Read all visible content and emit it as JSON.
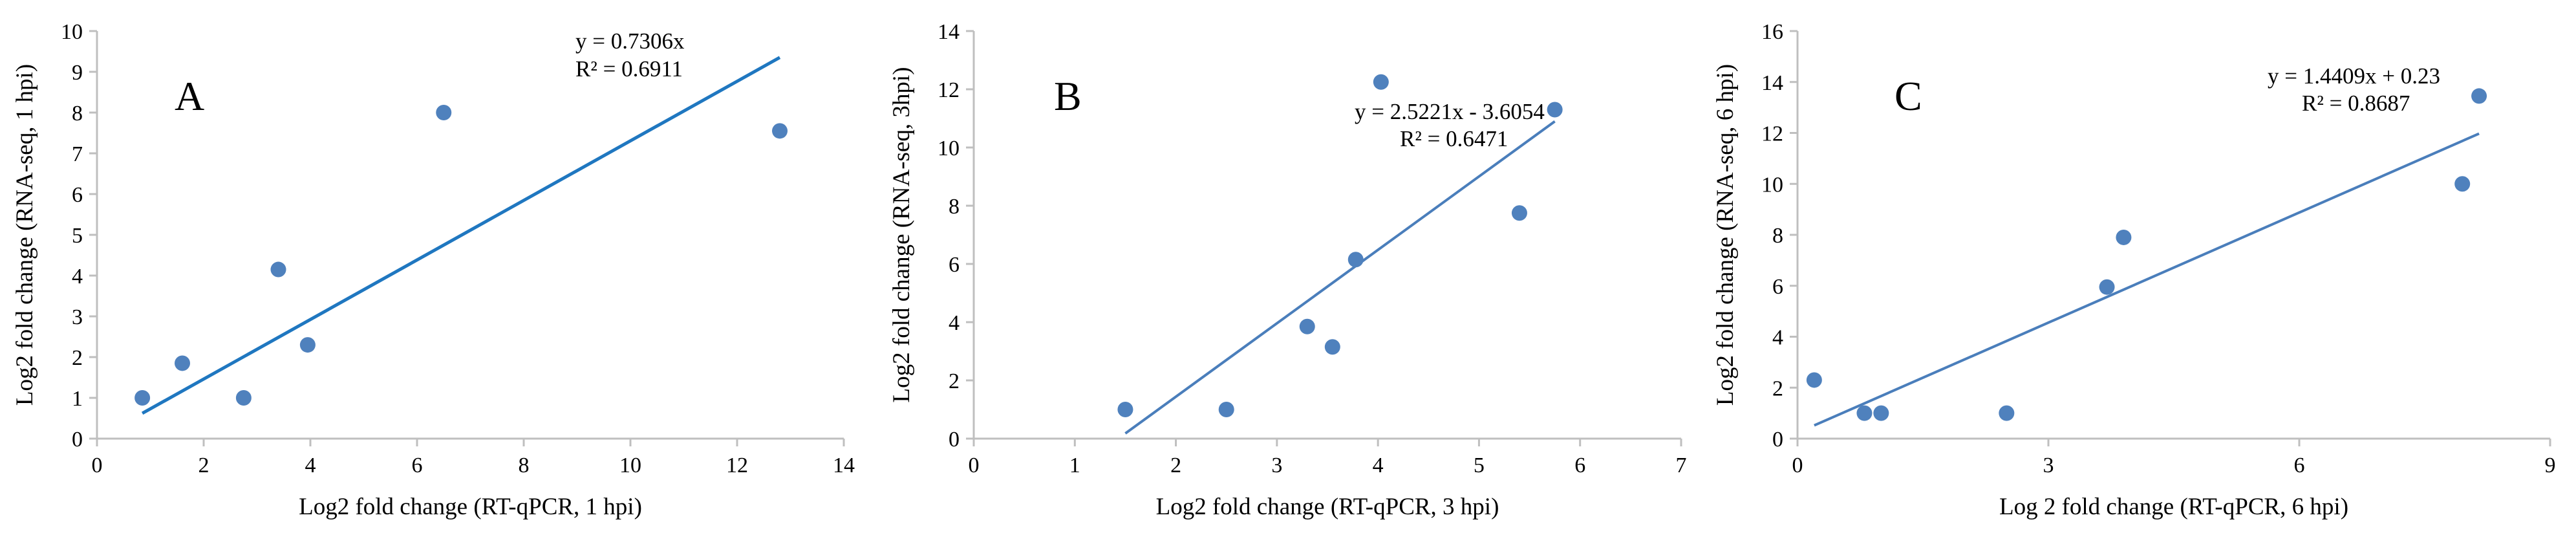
{
  "colors": {
    "point": "#4f81bd",
    "trend": "#4a7ebb",
    "trend_a": "#1f77c0",
    "axis": "#bfbfbf"
  },
  "chart_data": [
    {
      "type": "scatter",
      "panel_label": "A",
      "xlabel": "Log2 fold change (RT-qPCR, 1 hpi)",
      "ylabel": "Log2 fold change (RNA-seq, 1 hpi)",
      "xlim": [
        0,
        14
      ],
      "ylim": [
        0,
        10
      ],
      "xticks": [
        0,
        2,
        4,
        6,
        8,
        10,
        12,
        14
      ],
      "yticks": [
        0,
        1,
        2,
        3,
        4,
        5,
        6,
        7,
        8,
        9,
        10
      ],
      "points": [
        {
          "x": 0.85,
          "y": 1.0
        },
        {
          "x": 1.6,
          "y": 1.85
        },
        {
          "x": 2.75,
          "y": 1.0
        },
        {
          "x": 3.4,
          "y": 4.15
        },
        {
          "x": 3.95,
          "y": 2.3
        },
        {
          "x": 6.5,
          "y": 8.0
        },
        {
          "x": 12.8,
          "y": 7.55
        }
      ],
      "trendline": {
        "slope": 0.7306,
        "intercept": 0,
        "x_start": 0.85,
        "x_end": 12.8
      },
      "equation": "y = 0.7306x",
      "r_squared": "R² = 0.6911"
    },
    {
      "type": "scatter",
      "panel_label": "B",
      "xlabel": "Log2 fold change (RT-qPCR, 3 hpi)",
      "ylabel": "Log2 fold change (RNA-seq, 3hpi)",
      "xlim": [
        0,
        7
      ],
      "ylim": [
        0,
        14
      ],
      "xticks": [
        0,
        1,
        2,
        3,
        4,
        5,
        6,
        7
      ],
      "yticks": [
        0,
        2,
        4,
        6,
        8,
        10,
        12,
        14
      ],
      "points": [
        {
          "x": 1.5,
          "y": 1.0
        },
        {
          "x": 2.5,
          "y": 1.0
        },
        {
          "x": 3.3,
          "y": 3.85
        },
        {
          "x": 3.55,
          "y": 3.15
        },
        {
          "x": 3.78,
          "y": 6.15
        },
        {
          "x": 4.03,
          "y": 12.25
        },
        {
          "x": 5.4,
          "y": 7.75
        },
        {
          "x": 5.75,
          "y": 11.3
        }
      ],
      "trendline": {
        "slope": 2.5221,
        "intercept": -3.6054,
        "x_start": 1.5,
        "x_end": 5.75
      },
      "equation": "y = 2.5221x - 3.6054",
      "r_squared": "R² = 0.6471"
    },
    {
      "type": "scatter",
      "panel_label": "C",
      "xlabel": "Log 2 fold change (RT-qPCR, 6 hpi)",
      "ylabel": "Log2 fold change (RNA-seq, 6 hpi)",
      "xlim": [
        0,
        9
      ],
      "ylim": [
        0,
        16
      ],
      "xticks": [
        0,
        3,
        6,
        9
      ],
      "yticks": [
        0,
        2,
        4,
        6,
        8,
        10,
        12,
        14,
        16
      ],
      "points": [
        {
          "x": 0.2,
          "y": 2.3
        },
        {
          "x": 0.8,
          "y": 1.0
        },
        {
          "x": 1.0,
          "y": 1.0
        },
        {
          "x": 2.5,
          "y": 1.0
        },
        {
          "x": 3.7,
          "y": 5.95
        },
        {
          "x": 3.9,
          "y": 7.9
        },
        {
          "x": 7.95,
          "y": 10.0
        },
        {
          "x": 8.15,
          "y": 13.45
        }
      ],
      "trendline": {
        "slope": 1.4409,
        "intercept": 0.23,
        "x_start": 0.2,
        "x_end": 8.15
      },
      "equation": "y = 1.4409x + 0.23",
      "r_squared": "R² = 0.8687"
    }
  ]
}
